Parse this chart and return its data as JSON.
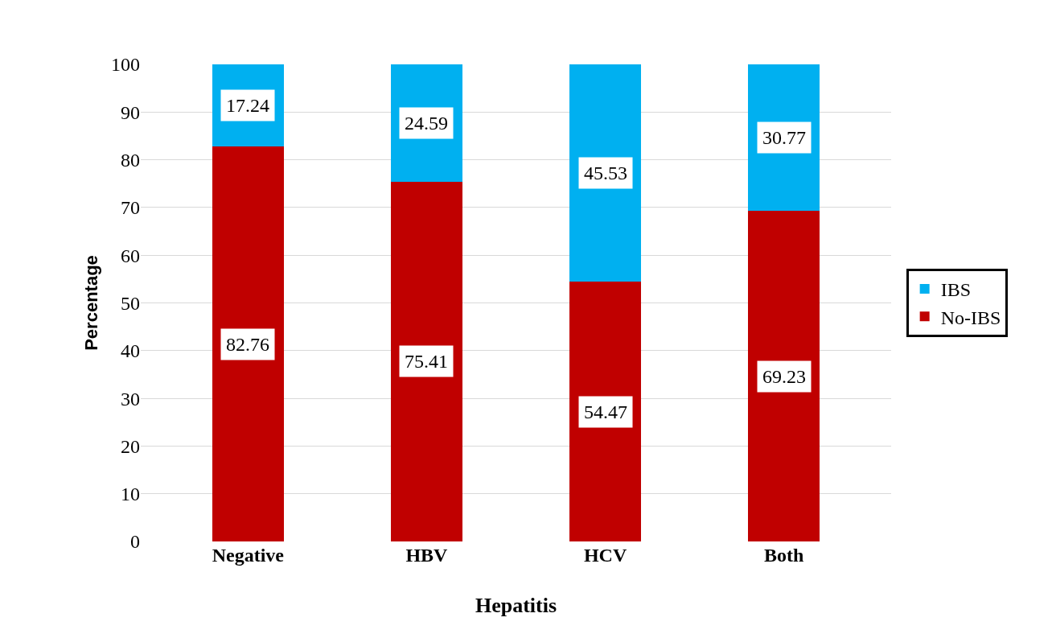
{
  "chart_data": {
    "type": "bar",
    "stacked": true,
    "xlabel": "Hepatitis",
    "ylabel": "Percentage",
    "categories": [
      "Negative",
      "HBV",
      "HCV",
      "Both"
    ],
    "series": [
      {
        "name": "No-IBS",
        "color": "#c00000",
        "values": [
          82.76,
          75.41,
          54.47,
          69.23
        ]
      },
      {
        "name": "IBS",
        "color": "#00b0f0",
        "values": [
          17.24,
          24.59,
          45.53,
          30.77
        ]
      }
    ],
    "ylim": [
      0,
      100
    ],
    "yticks": [
      0,
      10,
      20,
      30,
      40,
      50,
      60,
      70,
      80,
      90,
      100
    ],
    "grid": "y",
    "legend": "right",
    "data_labels": true
  }
}
